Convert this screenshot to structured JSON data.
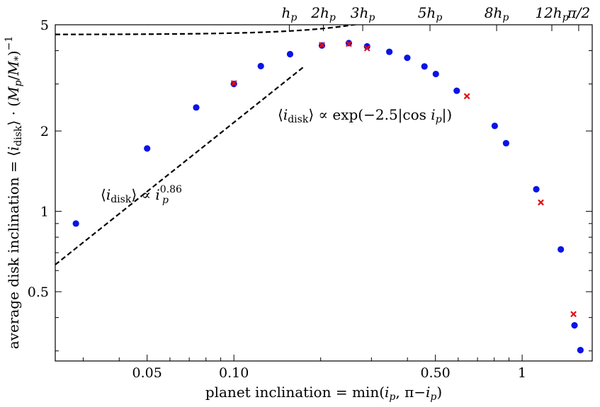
{
  "chart_data": {
    "type": "scatter",
    "title": "",
    "xlabel": "planet inclination = min(i_p, π−i_p)",
    "ylabel": "average disk inclination = ⟨i_disk⟩ · (M_p/M_*)^−1",
    "xscale": "log",
    "yscale": "log",
    "xlim": [
      0.024,
      1.75
    ],
    "ylim": [
      0.275,
      5.0
    ],
    "grid": false,
    "xticks": [
      {
        "value": 0.05,
        "label": "0.05"
      },
      {
        "value": 0.1,
        "label": "0.10"
      },
      {
        "value": 0.5,
        "label": "0.50"
      },
      {
        "value": 1.0,
        "label": "1"
      }
    ],
    "yticks": [
      {
        "value": 0.5,
        "label": "0.5"
      },
      {
        "value": 1.0,
        "label": "1"
      },
      {
        "value": 2.0,
        "label": "2"
      },
      {
        "value": 5.0,
        "label": "5"
      }
    ],
    "top_ticks": [
      {
        "value": 0.1557,
        "label": "h",
        "sub": "p"
      },
      {
        "value": 0.2044,
        "label": "2h",
        "sub": "p"
      },
      {
        "value": 0.2798,
        "label": "3h",
        "sub": "p"
      },
      {
        "value": 0.4789,
        "label": "5h",
        "sub": "p"
      },
      {
        "value": 0.8155,
        "label": "8h",
        "sub": "p"
      },
      {
        "value": 1.2676,
        "label": "12h",
        "sub": "p"
      },
      {
        "value": 1.5708,
        "label": "π/2",
        "sub": ""
      }
    ],
    "series": [
      {
        "marker": "circle",
        "color": "#0a14e6",
        "x": [
          0.0283,
          0.05,
          0.074,
          0.1,
          0.124,
          0.1566,
          0.202,
          0.2504,
          0.2898,
          0.3461,
          0.3994,
          0.4582,
          0.5018,
          0.5931,
          0.8033,
          0.8793,
          1.1194,
          1.3618,
          1.5193,
          1.5927
        ],
        "y": [
          0.9,
          1.72,
          2.45,
          3.0,
          3.5,
          3.88,
          4.18,
          4.27,
          4.15,
          3.96,
          3.76,
          3.49,
          3.27,
          2.83,
          2.09,
          1.8,
          1.21,
          0.72,
          0.374,
          0.302
        ]
      },
      {
        "marker": "cross",
        "color": "#e60a0a",
        "x": [
          0.1,
          0.202,
          0.2504,
          0.2898,
          0.6432,
          1.1611,
          1.507
        ],
        "y": [
          3.02,
          4.2,
          4.24,
          4.08,
          2.7,
          1.08,
          0.412
        ]
      }
    ],
    "fits": [
      {
        "name": "power",
        "form": "A*x^k",
        "A": 15.6,
        "k": 0.86,
        "x_range": [
          0.024,
          0.175
        ],
        "style": "dashed"
      },
      {
        "name": "exp",
        "form": "B*exp(-2.5*|cos(x)|)",
        "B": 56.0,
        "x_range": [
          0.024,
          1.51
        ],
        "style": "dashed"
      }
    ],
    "annotations": [
      {
        "id": "power-law",
        "lhs": "⟨i",
        "lhs_sub": "disk",
        "rhs_base": "⟩ ∝ i",
        "rhs_sub": "p",
        "rhs_sup": "0.86"
      },
      {
        "id": "exp-law",
        "lhs": "⟨i",
        "lhs_sub": "disk",
        "rhs_base": "⟩ ∝ exp(−2.5|cos i",
        "rhs_sub": "p",
        "rhs_end": "|)"
      }
    ]
  }
}
